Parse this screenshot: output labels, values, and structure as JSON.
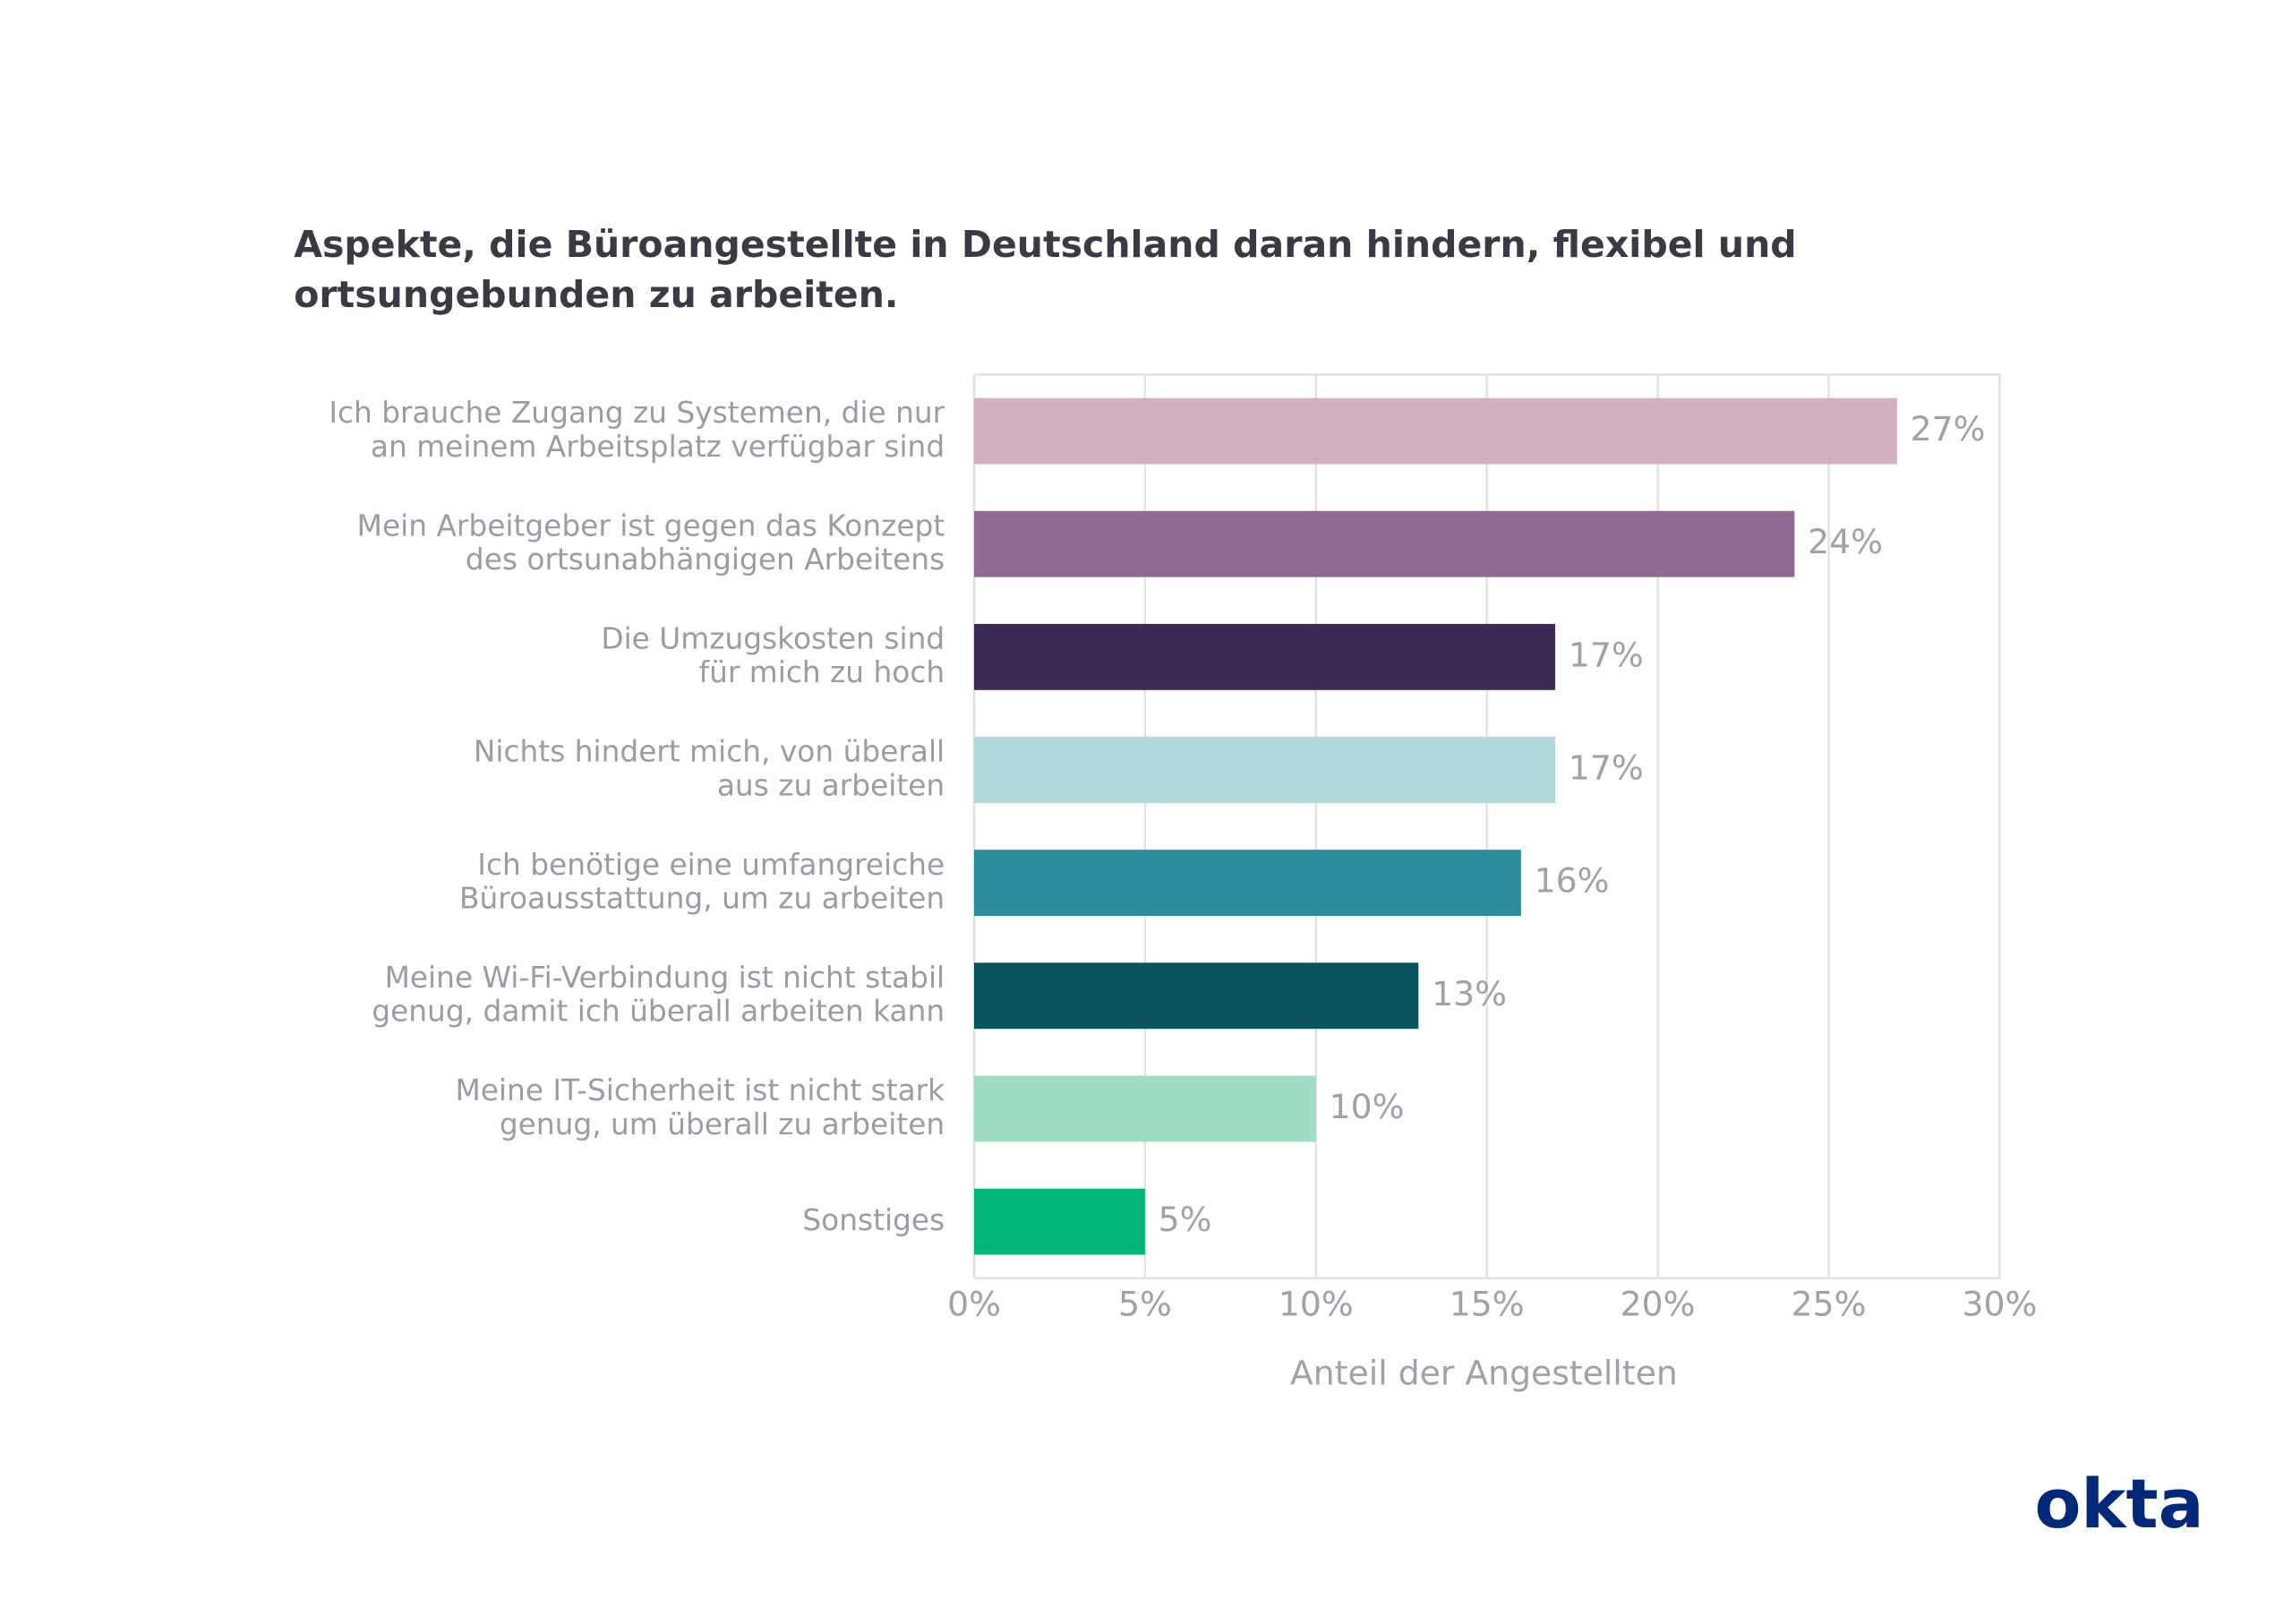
{
  "chart_data": {
    "type": "bar",
    "orientation": "horizontal",
    "title": "Aspekte, die Büroangestellte in Deutschland daran hindern, flexibel und ortsungebunden zu arbeiten.",
    "categories": [
      [
        "Ich brauche Zugang zu Systemen, die nur",
        "an meinem Arbeitsplatz verfügbar sind"
      ],
      [
        "Mein Arbeitgeber ist gegen das Konzept",
        "des ortsunabhängigen Arbeitens"
      ],
      [
        "Die Umzugskosten sind",
        "für mich zu hoch"
      ],
      [
        "Nichts hindert mich, von überall",
        "aus zu arbeiten"
      ],
      [
        "Ich benötige eine umfangreiche",
        "Büroausstattung, um zu arbeiten"
      ],
      [
        "Meine Wi-Fi-Verbindung ist nicht stabil",
        "genug, damit ich überall arbeiten kann"
      ],
      [
        "Meine IT-Sicherheit ist nicht stark",
        "genug, um überall zu arbeiten"
      ],
      [
        "Sonstiges"
      ]
    ],
    "values": [
      27,
      24,
      17,
      17,
      16,
      13,
      10,
      5
    ],
    "value_labels": [
      "27%",
      "24%",
      "17%",
      "17%",
      "16%",
      "13%",
      "10%",
      "5%"
    ],
    "colors": [
      "#d4afc2",
      "#8f6b93",
      "#3d2b56",
      "#afd6d8",
      "#2b8c9b",
      "#08545e",
      "#a1dcc4",
      "#00b67a"
    ],
    "xlim": [
      0,
      30
    ],
    "xticks": [
      {
        "value": 0,
        "label": "0%"
      },
      {
        "value": 5,
        "label": "5%"
      },
      {
        "value": 10,
        "label": "10%"
      },
      {
        "value": 15,
        "label": "15%"
      },
      {
        "value": 20,
        "label": "20%"
      },
      {
        "value": 25,
        "label": "25%"
      },
      {
        "value": 30,
        "label": "30%"
      }
    ],
    "xlabel": "Anteil der Angestellten",
    "grid": true,
    "logo": "okta"
  }
}
